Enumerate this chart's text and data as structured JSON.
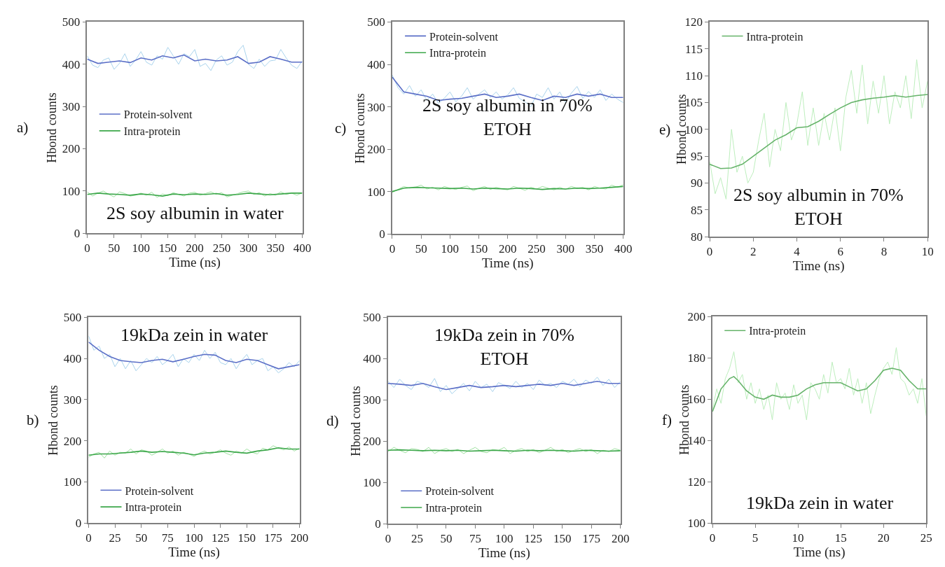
{
  "chart_data": [
    {
      "type": "line",
      "xlabel": "Time (ns)",
      "ylabel": "Hbond counts",
      "annotations": [
        "a)",
        "2S soy albumin in water"
      ],
      "xlim": [
        0,
        400
      ],
      "xticks": [
        0,
        50,
        100,
        150,
        200,
        250,
        300,
        350,
        400
      ],
      "ylim": [
        0,
        500
      ],
      "yticks": [
        0,
        100,
        200,
        300,
        400,
        500
      ],
      "legend": "left",
      "series": [
        {
          "color": "#a9d3ec",
          "x": [
            0,
            10,
            20,
            30,
            40,
            50,
            60,
            70,
            80,
            90,
            100,
            110,
            120,
            130,
            140,
            150,
            160,
            170,
            180,
            190,
            200,
            210,
            220,
            230,
            240,
            250,
            260,
            270,
            280,
            290,
            300,
            310,
            320,
            330,
            340,
            350,
            360,
            370,
            380,
            390,
            400
          ],
          "values": [
            420,
            398,
            392,
            410,
            415,
            388,
            402,
            425,
            395,
            410,
            430,
            405,
            398,
            420,
            412,
            440,
            420,
            400,
            425,
            418,
            435,
            395,
            402,
            385,
            410,
            420,
            398,
            405,
            430,
            445,
            400,
            390,
            412,
            395,
            408,
            410,
            435,
            415,
            398,
            390,
            408
          ]
        },
        {
          "color": "#9ee0a0",
          "x": [
            0,
            10,
            20,
            30,
            40,
            50,
            60,
            70,
            80,
            90,
            100,
            110,
            120,
            130,
            140,
            150,
            160,
            170,
            180,
            190,
            200,
            210,
            220,
            230,
            240,
            250,
            260,
            270,
            280,
            290,
            300,
            310,
            320,
            330,
            340,
            350,
            360,
            370,
            380,
            390,
            400
          ],
          "values": [
            98,
            88,
            95,
            100,
            92,
            86,
            98,
            94,
            88,
            90,
            95,
            90,
            97,
            85,
            93,
            89,
            96,
            92,
            88,
            95,
            97,
            90,
            94,
            98,
            92,
            96,
            86,
            90,
            94,
            98,
            100,
            92,
            96,
            88,
            94,
            90,
            98,
            92,
            95,
            90,
            96
          ]
        },
        {
          "name": "Protein-solvent",
          "color": "#5b6fc7",
          "x": [
            0,
            20,
            40,
            60,
            80,
            100,
            120,
            140,
            160,
            180,
            200,
            220,
            240,
            260,
            280,
            300,
            320,
            340,
            360,
            380,
            400
          ],
          "values": [
            412,
            402,
            405,
            408,
            404,
            415,
            410,
            420,
            415,
            422,
            408,
            412,
            408,
            410,
            418,
            402,
            405,
            418,
            412,
            405,
            405
          ]
        },
        {
          "name": "Intra-protein",
          "color": "#3ca74a",
          "x": [
            0,
            20,
            40,
            60,
            80,
            100,
            120,
            140,
            160,
            180,
            200,
            220,
            240,
            260,
            280,
            300,
            320,
            340,
            360,
            380,
            400
          ],
          "values": [
            92,
            95,
            93,
            92,
            90,
            93,
            91,
            88,
            93,
            91,
            93,
            92,
            94,
            90,
            92,
            95,
            93,
            91,
            93,
            95,
            95
          ]
        }
      ]
    },
    {
      "type": "line",
      "xlabel": "Time (ns)",
      "ylabel": "Hbond counts",
      "annotations": [
        "c)",
        "2S soy albumin in 70%\nETOH"
      ],
      "xlim": [
        0,
        400
      ],
      "xticks": [
        0,
        50,
        100,
        150,
        200,
        250,
        300,
        350,
        400
      ],
      "ylim": [
        0,
        500
      ],
      "yticks": [
        0,
        100,
        200,
        300,
        400,
        500
      ],
      "legend": "top left",
      "series": [
        {
          "color": "#a9d3ec",
          "x": [
            0,
            10,
            20,
            30,
            40,
            50,
            60,
            70,
            80,
            90,
            100,
            110,
            120,
            130,
            140,
            150,
            160,
            170,
            180,
            190,
            200,
            210,
            220,
            230,
            240,
            250,
            260,
            270,
            280,
            290,
            300,
            310,
            320,
            330,
            340,
            350,
            360,
            370,
            380,
            390,
            400
          ],
          "values": [
            375,
            345,
            330,
            350,
            325,
            340,
            315,
            330,
            308,
            320,
            335,
            312,
            325,
            345,
            318,
            330,
            340,
            322,
            335,
            318,
            328,
            345,
            320,
            312,
            300,
            330,
            322,
            345,
            318,
            335,
            310,
            332,
            348,
            320,
            336,
            322,
            340,
            315,
            330,
            318,
            310
          ]
        },
        {
          "color": "#9ee0a0",
          "x": [
            0,
            10,
            20,
            30,
            40,
            50,
            60,
            70,
            80,
            90,
            100,
            110,
            120,
            130,
            140,
            150,
            160,
            170,
            180,
            190,
            200,
            210,
            220,
            230,
            240,
            250,
            260,
            270,
            280,
            290,
            300,
            310,
            320,
            330,
            340,
            350,
            360,
            370,
            380,
            390,
            400
          ],
          "values": [
            98,
            105,
            112,
            108,
            110,
            115,
            106,
            110,
            104,
            112,
            108,
            105,
            110,
            113,
            102,
            108,
            112,
            105,
            110,
            106,
            104,
            112,
            108,
            103,
            110,
            106,
            112,
            108,
            104,
            110,
            105,
            112,
            108,
            110,
            104,
            112,
            108,
            106,
            115,
            110,
            116
          ]
        },
        {
          "name": "Protein-solvent",
          "color": "#5b6fc7",
          "x": [
            0,
            20,
            40,
            60,
            80,
            100,
            120,
            140,
            160,
            180,
            200,
            220,
            240,
            260,
            280,
            300,
            320,
            340,
            360,
            380,
            400
          ],
          "values": [
            370,
            335,
            330,
            325,
            315,
            318,
            320,
            325,
            330,
            322,
            325,
            330,
            322,
            315,
            325,
            322,
            330,
            325,
            330,
            322,
            322
          ]
        },
        {
          "name": "Intra-protein",
          "color": "#3ca74a",
          "x": [
            0,
            20,
            40,
            60,
            80,
            100,
            120,
            140,
            160,
            180,
            200,
            220,
            240,
            260,
            280,
            300,
            320,
            340,
            360,
            380,
            400
          ],
          "values": [
            100,
            108,
            110,
            109,
            108,
            107,
            108,
            106,
            108,
            107,
            106,
            108,
            107,
            105,
            107,
            106,
            108,
            107,
            108,
            110,
            112
          ]
        }
      ]
    },
    {
      "type": "line",
      "xlabel": "Time (ns)",
      "ylabel": "Hbond counts",
      "annotations": [
        "e)",
        "2S soy albumin in 70%\nETOH"
      ],
      "xlim": [
        0,
        10
      ],
      "xticks": [
        0,
        2,
        4,
        6,
        8,
        10
      ],
      "ylim": [
        80,
        120
      ],
      "yticks": [
        80,
        85,
        90,
        95,
        100,
        105,
        110,
        115,
        120
      ],
      "legend": "top left",
      "series": [
        {
          "color": "#bdeebd",
          "x": [
            0,
            0.25,
            0.5,
            0.75,
            1,
            1.25,
            1.5,
            1.75,
            2,
            2.25,
            2.5,
            2.75,
            3,
            3.25,
            3.5,
            3.75,
            4,
            4.25,
            4.5,
            4.75,
            5,
            5.25,
            5.5,
            5.75,
            6,
            6.25,
            6.5,
            6.75,
            7,
            7.25,
            7.5,
            7.75,
            8,
            8.25,
            8.5,
            8.75,
            9,
            9.25,
            9.5,
            9.75,
            10
          ],
          "values": [
            94,
            88,
            91,
            87,
            100,
            92,
            95,
            90,
            92,
            98,
            103,
            93,
            100,
            96,
            105,
            98,
            101,
            107,
            97,
            104,
            97,
            103,
            98,
            104,
            96,
            106,
            111,
            103,
            112,
            101,
            109,
            103,
            110,
            101,
            107,
            104,
            110,
            102,
            113,
            104,
            109
          ]
        },
        {
          "name": "Intra-protein",
          "color": "#66b36a",
          "x": [
            0,
            0.5,
            1,
            1.5,
            2,
            2.5,
            3,
            3.5,
            4,
            4.5,
            5,
            5.5,
            6,
            6.5,
            7,
            7.5,
            8,
            8.5,
            9,
            9.5,
            10
          ],
          "values": [
            93.5,
            92.7,
            92.8,
            93.5,
            95,
            96.5,
            98,
            99,
            100.3,
            100.5,
            101.5,
            102.8,
            104,
            105,
            105.5,
            105.8,
            106,
            106.3,
            106,
            106.3,
            106.5
          ]
        }
      ]
    },
    {
      "type": "line",
      "xlabel": "Time (ns)",
      "ylabel": "Hbond counts",
      "annotations": [
        "b)",
        "19kDa zein in water"
      ],
      "xlim": [
        0,
        200
      ],
      "xticks": [
        0,
        25,
        50,
        75,
        100,
        125,
        150,
        175,
        200
      ],
      "ylim": [
        0,
        500
      ],
      "yticks": [
        0,
        100,
        200,
        300,
        400,
        500
      ],
      "legend": "bottom left",
      "series": [
        {
          "color": "#a9d3ec",
          "x": [
            0,
            5,
            10,
            15,
            20,
            25,
            30,
            35,
            40,
            45,
            50,
            55,
            60,
            65,
            70,
            75,
            80,
            85,
            90,
            95,
            100,
            105,
            110,
            115,
            120,
            125,
            130,
            135,
            140,
            145,
            150,
            155,
            160,
            165,
            170,
            175,
            180,
            185,
            190,
            195,
            200
          ],
          "values": [
            455,
            420,
            430,
            400,
            410,
            380,
            400,
            375,
            395,
            370,
            385,
            400,
            390,
            405,
            385,
            395,
            410,
            380,
            400,
            390,
            410,
            395,
            420,
            400,
            415,
            390,
            385,
            400,
            375,
            395,
            410,
            385,
            395,
            400,
            370,
            380,
            365,
            375,
            390,
            380,
            395
          ]
        },
        {
          "color": "#9ee0a0",
          "x": [
            0,
            5,
            10,
            15,
            20,
            25,
            30,
            35,
            40,
            45,
            50,
            55,
            60,
            65,
            70,
            75,
            80,
            85,
            90,
            95,
            100,
            105,
            110,
            115,
            120,
            125,
            130,
            135,
            140,
            145,
            150,
            155,
            160,
            165,
            170,
            175,
            180,
            185,
            190,
            195,
            200
          ],
          "values": [
            160,
            168,
            172,
            158,
            175,
            165,
            172,
            170,
            180,
            168,
            178,
            175,
            165,
            172,
            180,
            170,
            175,
            165,
            172,
            168,
            162,
            170,
            175,
            168,
            172,
            178,
            170,
            165,
            175,
            170,
            180,
            172,
            168,
            182,
            178,
            188,
            182,
            178,
            185,
            175,
            182
          ]
        },
        {
          "name": "Protein-solvent",
          "color": "#5b6fc7",
          "x": [
            0,
            10,
            20,
            30,
            40,
            50,
            60,
            70,
            80,
            90,
            100,
            110,
            120,
            130,
            140,
            150,
            160,
            170,
            180,
            190,
            200
          ],
          "values": [
            440,
            420,
            405,
            395,
            392,
            390,
            395,
            398,
            392,
            398,
            405,
            410,
            408,
            395,
            390,
            398,
            395,
            385,
            375,
            380,
            385
          ]
        },
        {
          "name": "Intra-protein",
          "color": "#3ca74a",
          "x": [
            0,
            10,
            20,
            30,
            40,
            50,
            60,
            70,
            80,
            90,
            100,
            110,
            120,
            130,
            140,
            150,
            160,
            170,
            180,
            190,
            200
          ],
          "values": [
            165,
            168,
            168,
            170,
            172,
            175,
            172,
            174,
            172,
            170,
            166,
            170,
            172,
            175,
            172,
            170,
            175,
            178,
            183,
            180,
            180
          ]
        }
      ]
    },
    {
      "type": "line",
      "xlabel": "Time (ns)",
      "ylabel": "Hbond counts",
      "annotations": [
        "d)",
        "19kDa zein in 70%\nETOH"
      ],
      "xlim": [
        0,
        200
      ],
      "xticks": [
        0,
        25,
        50,
        75,
        100,
        125,
        150,
        175,
        200
      ],
      "ylim": [
        0,
        500
      ],
      "yticks": [
        0,
        100,
        200,
        300,
        400,
        500
      ],
      "legend": "bottom left",
      "series": [
        {
          "color": "#a9d3ec",
          "x": [
            0,
            5,
            10,
            15,
            20,
            25,
            30,
            35,
            40,
            45,
            50,
            55,
            60,
            65,
            70,
            75,
            80,
            85,
            90,
            95,
            100,
            105,
            110,
            115,
            120,
            125,
            130,
            135,
            140,
            145,
            150,
            155,
            160,
            165,
            170,
            175,
            180,
            185,
            190,
            195,
            200
          ],
          "values": [
            345,
            330,
            350,
            335,
            325,
            345,
            340,
            330,
            352,
            320,
            335,
            315,
            328,
            340,
            322,
            345,
            330,
            338,
            320,
            342,
            335,
            328,
            345,
            330,
            340,
            325,
            348,
            335,
            340,
            330,
            345,
            338,
            350,
            332,
            348,
            340,
            355,
            335,
            350,
            330,
            345
          ]
        },
        {
          "color": "#9ee0a0",
          "x": [
            0,
            5,
            10,
            15,
            20,
            25,
            30,
            35,
            40,
            45,
            50,
            55,
            60,
            65,
            70,
            75,
            80,
            85,
            90,
            95,
            100,
            105,
            110,
            115,
            120,
            125,
            130,
            135,
            140,
            145,
            150,
            155,
            160,
            165,
            170,
            175,
            180,
            185,
            190,
            195,
            200
          ],
          "values": [
            175,
            185,
            178,
            172,
            182,
            180,
            175,
            185,
            170,
            178,
            182,
            175,
            180,
            170,
            178,
            185,
            175,
            172,
            180,
            178,
            185,
            170,
            178,
            182,
            175,
            180,
            172,
            178,
            185,
            175,
            180,
            172,
            178,
            182,
            175,
            180,
            170,
            178,
            175,
            182,
            178
          ]
        },
        {
          "name": "Protein-solvent",
          "color": "#5b6fc7",
          "x": [
            0,
            10,
            20,
            30,
            40,
            50,
            60,
            70,
            80,
            90,
            100,
            110,
            120,
            130,
            140,
            150,
            160,
            170,
            180,
            190,
            200
          ],
          "values": [
            340,
            338,
            335,
            340,
            332,
            325,
            330,
            335,
            330,
            332,
            335,
            332,
            335,
            338,
            335,
            340,
            335,
            340,
            345,
            340,
            340
          ]
        },
        {
          "name": "Intra-protein",
          "color": "#3ca74a",
          "x": [
            0,
            10,
            20,
            30,
            40,
            50,
            60,
            70,
            80,
            90,
            100,
            110,
            120,
            130,
            140,
            150,
            160,
            170,
            180,
            190,
            200
          ],
          "values": [
            178,
            179,
            178,
            177,
            178,
            177,
            178,
            176,
            177,
            178,
            177,
            176,
            178,
            177,
            178,
            177,
            176,
            178,
            177,
            176,
            177
          ]
        }
      ]
    },
    {
      "type": "line",
      "xlabel": "Time (ns)",
      "ylabel": "Hbond counts",
      "annotations": [
        "f)",
        "19kDa zein in water"
      ],
      "xlim": [
        0,
        25
      ],
      "xticks": [
        0,
        5,
        10,
        15,
        20,
        25
      ],
      "ylim": [
        100,
        200
      ],
      "yticks": [
        100,
        120,
        140,
        160,
        180,
        200
      ],
      "legend": "top left",
      "series": [
        {
          "color": "#bdeebd",
          "x": [
            0,
            0.5,
            1,
            1.5,
            2,
            2.5,
            3,
            3.5,
            4,
            4.5,
            5,
            5.5,
            6,
            6.5,
            7,
            7.5,
            8,
            8.5,
            9,
            9.5,
            10,
            10.5,
            11,
            11.5,
            12,
            12.5,
            13,
            13.5,
            14,
            14.5,
            15,
            15.5,
            16,
            16.5,
            17,
            17.5,
            18,
            18.5,
            19,
            19.5,
            20,
            20.5,
            21,
            21.5,
            22,
            22.5,
            23,
            23.5,
            24,
            24.5,
            25
          ],
          "values": [
            155,
            165,
            158,
            170,
            175,
            183,
            168,
            172,
            160,
            168,
            158,
            165,
            155,
            162,
            150,
            168,
            160,
            163,
            155,
            167,
            158,
            162,
            150,
            168,
            165,
            160,
            172,
            163,
            178,
            168,
            170,
            165,
            175,
            162,
            170,
            158,
            168,
            153,
            162,
            170,
            175,
            178,
            172,
            185,
            170,
            168,
            162,
            165,
            158,
            170,
            152
          ]
        },
        {
          "name": "Intra-protein",
          "color": "#66b36a",
          "x": [
            0,
            1,
            2,
            2.5,
            3,
            4,
            5,
            6,
            7,
            8,
            9,
            10,
            11,
            12,
            13,
            14,
            15,
            16,
            17,
            18,
            19,
            20,
            21,
            22,
            23,
            24,
            25
          ],
          "values": [
            154,
            165,
            170,
            171,
            169,
            164,
            161,
            160,
            162,
            161,
            161,
            162,
            165,
            167,
            168,
            168,
            168,
            166,
            164,
            165,
            169,
            174,
            175,
            174,
            169,
            165,
            165
          ]
        }
      ]
    }
  ]
}
